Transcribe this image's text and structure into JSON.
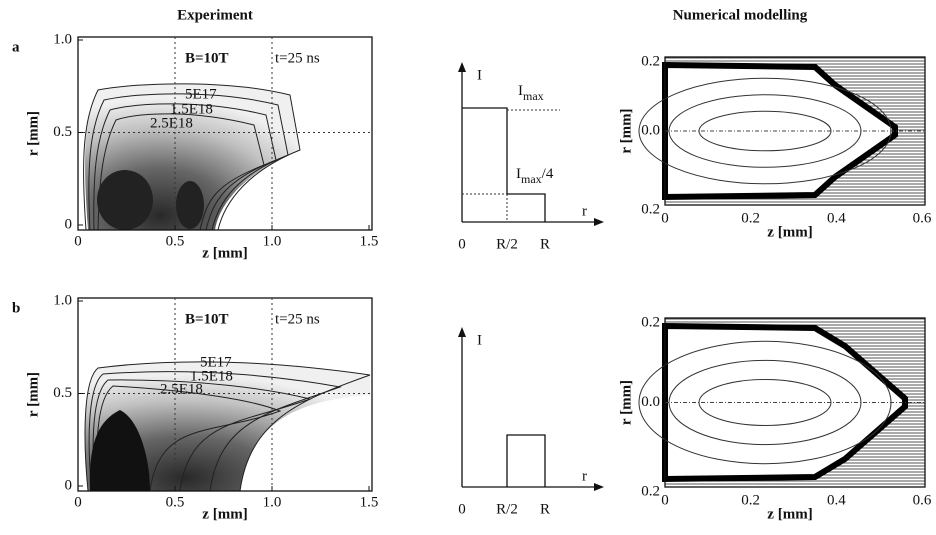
{
  "headers": {
    "experiment": "Experiment",
    "modelling": "Numerical modelling"
  },
  "rows": [
    {
      "label": "a",
      "experiment": {
        "field": "B=10T",
        "time": "t=25 ns",
        "xlabel": "z [mm]",
        "ylabel": "r [mm]",
        "xticks": [
          "0",
          "0.5",
          "1.0",
          "1.5"
        ],
        "yticks": [
          "0",
          "0.5",
          "1.0"
        ],
        "contours": [
          "5E17",
          "1.5E18",
          "2.5E18"
        ]
      },
      "profile": {
        "ylabel": "I",
        "xlabel": "r",
        "xticks": [
          "0",
          "R/2",
          "R"
        ],
        "levels": [
          {
            "main": "I",
            "sub": "max",
            "tail": ""
          },
          {
            "main": "I",
            "sub": "max",
            "tail": "/4"
          }
        ]
      },
      "model": {
        "xlabel": "z [mm]",
        "ylabel": "r [mm]",
        "xticks": [
          "0",
          "0.2",
          "0.4",
          "0.6"
        ],
        "yticks": [
          "0.2",
          "0.0",
          "0.2"
        ]
      }
    },
    {
      "label": "b",
      "experiment": {
        "field": "B=10T",
        "time": "t=25 ns",
        "xlabel": "z [mm]",
        "ylabel": "r [mm]",
        "xticks": [
          "0",
          "0.5",
          "1.0",
          "1.5"
        ],
        "yticks": [
          "0",
          "0.5",
          "1.0"
        ],
        "contours": [
          "5E17",
          "1.5E18",
          "2.5E18"
        ]
      },
      "profile": {
        "ylabel": "I",
        "xlabel": "r",
        "xticks": [
          "0",
          "R/2",
          "R"
        ]
      },
      "model": {
        "xlabel": "z [mm]",
        "ylabel": "r [mm]",
        "xticks": [
          "0",
          "0.2",
          "0.4",
          "0.6"
        ],
        "yticks": [
          "0.2",
          "0.0",
          "0.2"
        ]
      }
    }
  ]
}
